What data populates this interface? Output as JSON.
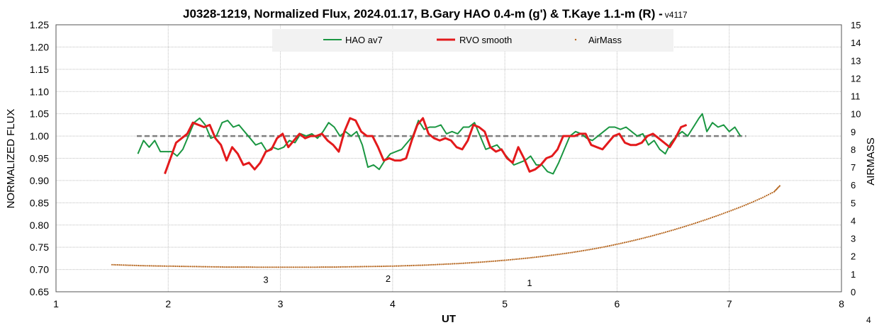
{
  "chart_data": {
    "type": "line",
    "title": "J0328-1219, Normalized Flux, 2024.01.17, B.Gary HAO 0.4-m (g') & T.Kaye 1.1-m (R) - ",
    "version": "v4117",
    "xlabel": "UT",
    "ylabel": "NORMALIZED FLUX",
    "y2label": "AIRMASS",
    "xlim": [
      1,
      8
    ],
    "ylim": [
      0.65,
      1.25
    ],
    "y2lim": [
      0,
      15
    ],
    "x_ticks": [
      "1",
      "2",
      "3",
      "4",
      "5",
      "6",
      "7",
      "8"
    ],
    "y_ticks": [
      "0.65",
      "0.70",
      "0.75",
      "0.80",
      "0.85",
      "0.90",
      "0.95",
      "1.00",
      "1.05",
      "1.10",
      "1.15",
      "1.20",
      "1.25"
    ],
    "y2_ticks": [
      "0",
      "1",
      "2",
      "3",
      "4",
      "5",
      "6",
      "7",
      "8",
      "9",
      "10",
      "11",
      "12",
      "13",
      "14",
      "15"
    ],
    "grid": true,
    "legend_position": "top-center",
    "corner_label": "4",
    "reference_line": {
      "y": 1.0,
      "x": [
        1.72,
        7.15
      ],
      "style": "dashed",
      "color": "#7f7f7f"
    },
    "annotations": [
      {
        "text": "3",
        "x": 2.87,
        "y": 0.678
      },
      {
        "text": "2",
        "x": 3.96,
        "y": 0.68
      },
      {
        "text": "1",
        "x": 5.22,
        "y": 0.671
      }
    ],
    "series": [
      {
        "name": "HAO av7",
        "color": "#1a9641",
        "axis": "left",
        "style": "line",
        "x": [
          1.73,
          1.78,
          1.83,
          1.88,
          1.93,
          1.98,
          2.03,
          2.08,
          2.13,
          2.18,
          2.23,
          2.28,
          2.33,
          2.38,
          2.43,
          2.48,
          2.53,
          2.58,
          2.63,
          2.68,
          2.73,
          2.78,
          2.83,
          2.88,
          2.93,
          2.98,
          3.03,
          3.08,
          3.13,
          3.18,
          3.23,
          3.28,
          3.33,
          3.38,
          3.43,
          3.48,
          3.53,
          3.58,
          3.63,
          3.68,
          3.73,
          3.78,
          3.83,
          3.88,
          3.93,
          3.98,
          4.03,
          4.08,
          4.13,
          4.18,
          4.23,
          4.28,
          4.33,
          4.38,
          4.43,
          4.48,
          4.53,
          4.58,
          4.63,
          4.68,
          4.73,
          4.78,
          4.83,
          4.88,
          4.93,
          4.98,
          5.03,
          5.08,
          5.13,
          5.18,
          5.23,
          5.28,
          5.33,
          5.38,
          5.43,
          5.48,
          5.53,
          5.58,
          5.63,
          5.68,
          5.73,
          5.78,
          5.83,
          5.88,
          5.93,
          5.98,
          6.03,
          6.08,
          6.13,
          6.18,
          6.23,
          6.28,
          6.33,
          6.38,
          6.43,
          6.48,
          6.53,
          6.58,
          6.63,
          6.68,
          6.73,
          6.76,
          6.8,
          6.85,
          6.9,
          6.95,
          7.0,
          7.05,
          7.1
        ],
        "y": [
          0.96,
          0.99,
          0.975,
          0.99,
          0.965,
          0.965,
          0.965,
          0.955,
          0.97,
          1.0,
          1.03,
          1.04,
          1.025,
          0.995,
          1.0,
          1.03,
          1.035,
          1.02,
          1.025,
          1.01,
          0.995,
          0.98,
          0.985,
          0.965,
          0.975,
          0.97,
          0.975,
          0.99,
          0.985,
          1.005,
          1.0,
          1.005,
          0.995,
          1.01,
          1.03,
          1.02,
          1.0,
          1.01,
          1.0,
          1.01,
          0.98,
          0.93,
          0.935,
          0.925,
          0.945,
          0.96,
          0.965,
          0.97,
          0.985,
          1.0,
          1.035,
          1.015,
          1.02,
          1.02,
          1.025,
          1.005,
          1.01,
          1.005,
          1.02,
          1.02,
          1.03,
          1.0,
          0.97,
          0.975,
          0.98,
          0.965,
          0.95,
          0.935,
          0.94,
          0.945,
          0.955,
          0.935,
          0.935,
          0.92,
          0.915,
          0.94,
          0.97,
          1.0,
          1.01,
          1.005,
          0.995,
          0.99,
          1.0,
          1.01,
          1.02,
          1.02,
          1.015,
          1.02,
          1.01,
          1.0,
          1.005,
          0.98,
          0.99,
          0.97,
          0.96,
          0.985,
          1.0,
          1.01,
          1.0,
          1.02,
          1.04,
          1.05,
          1.01,
          1.03,
          1.02,
          1.025,
          1.01,
          1.02,
          1.0
        ]
      },
      {
        "name": "RVO smooth",
        "color": "#e31a1c",
        "axis": "left",
        "style": "line",
        "x": [
          1.97,
          2.02,
          2.07,
          2.12,
          2.17,
          2.22,
          2.27,
          2.32,
          2.37,
          2.42,
          2.47,
          2.52,
          2.57,
          2.62,
          2.67,
          2.72,
          2.77,
          2.82,
          2.87,
          2.92,
          2.97,
          3.02,
          3.07,
          3.12,
          3.17,
          3.22,
          3.27,
          3.32,
          3.37,
          3.42,
          3.47,
          3.52,
          3.57,
          3.62,
          3.67,
          3.72,
          3.77,
          3.82,
          3.87,
          3.92,
          3.97,
          4.02,
          4.07,
          4.12,
          4.17,
          4.22,
          4.27,
          4.32,
          4.37,
          4.42,
          4.47,
          4.52,
          4.57,
          4.62,
          4.67,
          4.72,
          4.77,
          4.82,
          4.87,
          4.92,
          4.97,
          5.02,
          5.07,
          5.12,
          5.17,
          5.22,
          5.27,
          5.32,
          5.37,
          5.42,
          5.47,
          5.52,
          5.57,
          5.62,
          5.67,
          5.72,
          5.77,
          5.82,
          5.87,
          5.92,
          5.97,
          6.02,
          6.07,
          6.12,
          6.17,
          6.22,
          6.27,
          6.32,
          6.37,
          6.42,
          6.47,
          6.52,
          6.57,
          6.62
        ],
        "y": [
          0.915,
          0.95,
          0.985,
          0.995,
          1.005,
          1.03,
          1.025,
          1.02,
          1.025,
          0.995,
          0.98,
          0.945,
          0.975,
          0.96,
          0.935,
          0.94,
          0.925,
          0.94,
          0.965,
          0.97,
          0.995,
          1.005,
          0.975,
          0.99,
          1.005,
          0.995,
          1.0,
          1.0,
          1.005,
          0.99,
          0.98,
          0.965,
          1.01,
          1.04,
          1.035,
          1.01,
          1.0,
          1.0,
          0.975,
          0.945,
          0.95,
          0.945,
          0.945,
          0.95,
          0.99,
          1.025,
          1.04,
          1.005,
          0.995,
          0.99,
          0.995,
          0.99,
          0.975,
          0.97,
          0.99,
          1.025,
          1.02,
          1.01,
          0.975,
          0.965,
          0.97,
          0.95,
          0.94,
          0.975,
          0.95,
          0.92,
          0.925,
          0.935,
          0.95,
          0.955,
          0.97,
          1.0,
          1.0,
          1.0,
          1.005,
          1.005,
          0.98,
          0.975,
          0.97,
          0.985,
          1.0,
          1.005,
          0.985,
          0.98,
          0.98,
          0.985,
          1.0,
          1.005,
          0.995,
          0.985,
          0.975,
          0.995,
          1.02,
          1.025
        ]
      },
      {
        "name": "AirMass",
        "color": "#b5651d",
        "axis": "right",
        "style": "markers",
        "x": [
          1.5,
          1.6,
          1.7,
          1.8,
          1.9,
          2.0,
          2.1,
          2.2,
          2.3,
          2.4,
          2.5,
          2.6,
          2.7,
          2.8,
          2.9,
          3.0,
          3.1,
          3.2,
          3.3,
          3.4,
          3.5,
          3.6,
          3.7,
          3.8,
          3.9,
          4.0,
          4.1,
          4.2,
          4.3,
          4.4,
          4.5,
          4.6,
          4.7,
          4.8,
          4.9,
          5.0,
          5.1,
          5.2,
          5.3,
          5.4,
          5.5,
          5.6,
          5.7,
          5.8,
          5.9,
          6.0,
          6.1,
          6.2,
          6.3,
          6.4,
          6.5,
          6.6,
          6.7,
          6.8,
          6.9,
          7.0,
          7.1,
          7.2,
          7.3,
          7.4,
          7.45
        ],
        "y": [
          1.52,
          1.5,
          1.48,
          1.46,
          1.45,
          1.44,
          1.43,
          1.42,
          1.41,
          1.4,
          1.39,
          1.39,
          1.39,
          1.38,
          1.38,
          1.38,
          1.38,
          1.38,
          1.38,
          1.39,
          1.39,
          1.4,
          1.41,
          1.42,
          1.43,
          1.44,
          1.46,
          1.48,
          1.5,
          1.53,
          1.56,
          1.59,
          1.63,
          1.67,
          1.72,
          1.77,
          1.83,
          1.89,
          1.96,
          2.04,
          2.12,
          2.21,
          2.31,
          2.42,
          2.54,
          2.67,
          2.81,
          2.96,
          3.12,
          3.29,
          3.47,
          3.66,
          3.86,
          4.07,
          4.29,
          4.52,
          4.76,
          5.02,
          5.3,
          5.62,
          5.95
        ]
      }
    ]
  }
}
